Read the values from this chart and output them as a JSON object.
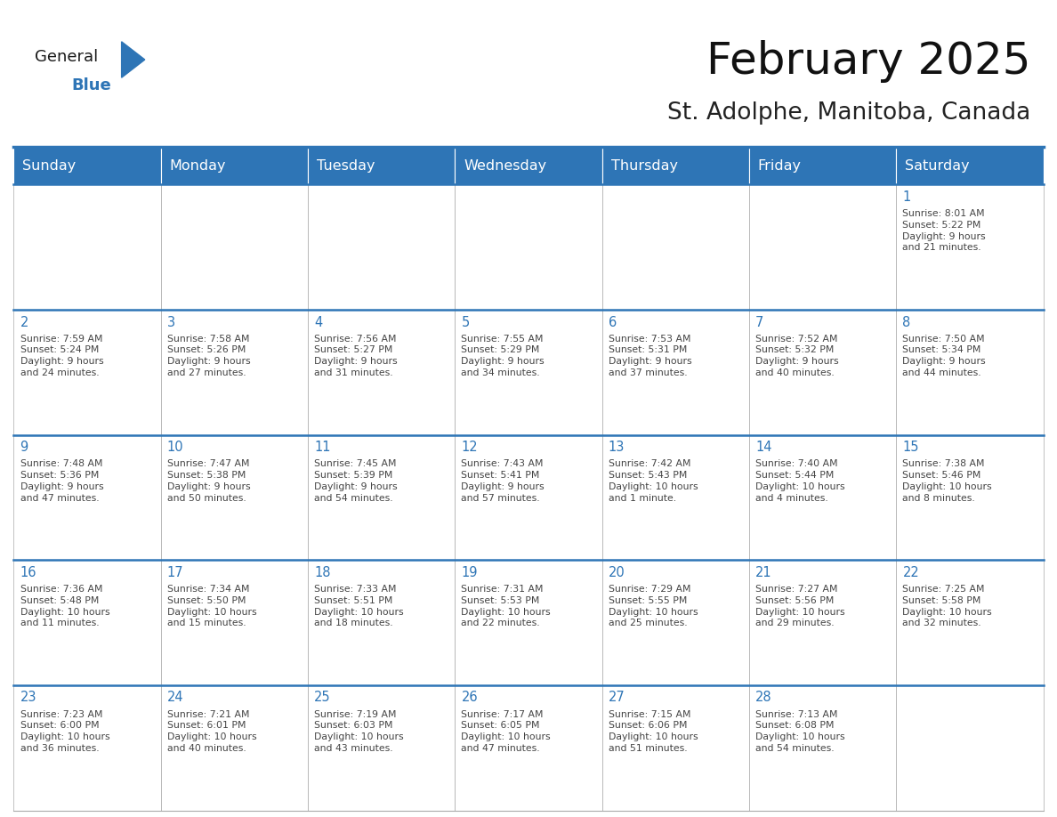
{
  "title": "February 2025",
  "subtitle": "St. Adolphe, Manitoba, Canada",
  "header_bg": "#2E75B6",
  "header_text": "#FFFFFF",
  "cell_bg": "#FFFFFF",
  "cell_border": "#AAAAAA",
  "week_border_color": "#2E75B6",
  "day_number_color": "#2E75B6",
  "cell_text_color": "#444444",
  "days_of_week": [
    "Sunday",
    "Monday",
    "Tuesday",
    "Wednesday",
    "Thursday",
    "Friday",
    "Saturday"
  ],
  "weeks": [
    [
      {
        "day": "",
        "info": ""
      },
      {
        "day": "",
        "info": ""
      },
      {
        "day": "",
        "info": ""
      },
      {
        "day": "",
        "info": ""
      },
      {
        "day": "",
        "info": ""
      },
      {
        "day": "",
        "info": ""
      },
      {
        "day": "1",
        "info": "Sunrise: 8:01 AM\nSunset: 5:22 PM\nDaylight: 9 hours\nand 21 minutes."
      }
    ],
    [
      {
        "day": "2",
        "info": "Sunrise: 7:59 AM\nSunset: 5:24 PM\nDaylight: 9 hours\nand 24 minutes."
      },
      {
        "day": "3",
        "info": "Sunrise: 7:58 AM\nSunset: 5:26 PM\nDaylight: 9 hours\nand 27 minutes."
      },
      {
        "day": "4",
        "info": "Sunrise: 7:56 AM\nSunset: 5:27 PM\nDaylight: 9 hours\nand 31 minutes."
      },
      {
        "day": "5",
        "info": "Sunrise: 7:55 AM\nSunset: 5:29 PM\nDaylight: 9 hours\nand 34 minutes."
      },
      {
        "day": "6",
        "info": "Sunrise: 7:53 AM\nSunset: 5:31 PM\nDaylight: 9 hours\nand 37 minutes."
      },
      {
        "day": "7",
        "info": "Sunrise: 7:52 AM\nSunset: 5:32 PM\nDaylight: 9 hours\nand 40 minutes."
      },
      {
        "day": "8",
        "info": "Sunrise: 7:50 AM\nSunset: 5:34 PM\nDaylight: 9 hours\nand 44 minutes."
      }
    ],
    [
      {
        "day": "9",
        "info": "Sunrise: 7:48 AM\nSunset: 5:36 PM\nDaylight: 9 hours\nand 47 minutes."
      },
      {
        "day": "10",
        "info": "Sunrise: 7:47 AM\nSunset: 5:38 PM\nDaylight: 9 hours\nand 50 minutes."
      },
      {
        "day": "11",
        "info": "Sunrise: 7:45 AM\nSunset: 5:39 PM\nDaylight: 9 hours\nand 54 minutes."
      },
      {
        "day": "12",
        "info": "Sunrise: 7:43 AM\nSunset: 5:41 PM\nDaylight: 9 hours\nand 57 minutes."
      },
      {
        "day": "13",
        "info": "Sunrise: 7:42 AM\nSunset: 5:43 PM\nDaylight: 10 hours\nand 1 minute."
      },
      {
        "day": "14",
        "info": "Sunrise: 7:40 AM\nSunset: 5:44 PM\nDaylight: 10 hours\nand 4 minutes."
      },
      {
        "day": "15",
        "info": "Sunrise: 7:38 AM\nSunset: 5:46 PM\nDaylight: 10 hours\nand 8 minutes."
      }
    ],
    [
      {
        "day": "16",
        "info": "Sunrise: 7:36 AM\nSunset: 5:48 PM\nDaylight: 10 hours\nand 11 minutes."
      },
      {
        "day": "17",
        "info": "Sunrise: 7:34 AM\nSunset: 5:50 PM\nDaylight: 10 hours\nand 15 minutes."
      },
      {
        "day": "18",
        "info": "Sunrise: 7:33 AM\nSunset: 5:51 PM\nDaylight: 10 hours\nand 18 minutes."
      },
      {
        "day": "19",
        "info": "Sunrise: 7:31 AM\nSunset: 5:53 PM\nDaylight: 10 hours\nand 22 minutes."
      },
      {
        "day": "20",
        "info": "Sunrise: 7:29 AM\nSunset: 5:55 PM\nDaylight: 10 hours\nand 25 minutes."
      },
      {
        "day": "21",
        "info": "Sunrise: 7:27 AM\nSunset: 5:56 PM\nDaylight: 10 hours\nand 29 minutes."
      },
      {
        "day": "22",
        "info": "Sunrise: 7:25 AM\nSunset: 5:58 PM\nDaylight: 10 hours\nand 32 minutes."
      }
    ],
    [
      {
        "day": "23",
        "info": "Sunrise: 7:23 AM\nSunset: 6:00 PM\nDaylight: 10 hours\nand 36 minutes."
      },
      {
        "day": "24",
        "info": "Sunrise: 7:21 AM\nSunset: 6:01 PM\nDaylight: 10 hours\nand 40 minutes."
      },
      {
        "day": "25",
        "info": "Sunrise: 7:19 AM\nSunset: 6:03 PM\nDaylight: 10 hours\nand 43 minutes."
      },
      {
        "day": "26",
        "info": "Sunrise: 7:17 AM\nSunset: 6:05 PM\nDaylight: 10 hours\nand 47 minutes."
      },
      {
        "day": "27",
        "info": "Sunrise: 7:15 AM\nSunset: 6:06 PM\nDaylight: 10 hours\nand 51 minutes."
      },
      {
        "day": "28",
        "info": "Sunrise: 7:13 AM\nSunset: 6:08 PM\nDaylight: 10 hours\nand 54 minutes."
      },
      {
        "day": "",
        "info": ""
      }
    ]
  ],
  "logo_general_color": "#1a1a1a",
  "logo_blue_color": "#2E75B6",
  "fig_width": 11.88,
  "fig_height": 9.18,
  "title_fontsize": 36,
  "subtitle_fontsize": 19,
  "day_header_fontsize": 11.5,
  "day_number_fontsize": 10.5,
  "cell_text_fontsize": 7.8
}
